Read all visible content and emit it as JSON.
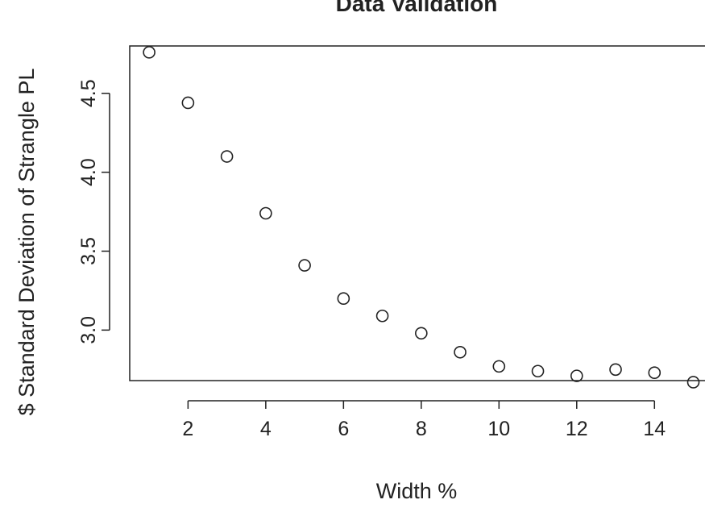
{
  "chart_data": {
    "type": "scatter",
    "title": "Data Validation",
    "xlabel": "Width %",
    "ylabel": "$ Standard Deviation of Strangle PL",
    "xlim": [
      0.5,
      15.3
    ],
    "ylim": [
      2.68,
      4.8
    ],
    "x_ticks": [
      2,
      4,
      6,
      8,
      10,
      12,
      14
    ],
    "y_ticks": [
      3.0,
      3.5,
      4.0,
      4.5
    ],
    "x_tick_labels": [
      "2",
      "4",
      "6",
      "8",
      "10",
      "12",
      "14"
    ],
    "y_tick_labels": [
      "3.0",
      "3.5",
      "4.0",
      "4.5"
    ],
    "grid": false,
    "marker": "open-circle",
    "x": [
      1,
      2,
      3,
      4,
      5,
      6,
      7,
      8,
      9,
      10,
      11,
      12,
      13,
      14,
      15
    ],
    "y": [
      4.76,
      4.44,
      4.1,
      3.74,
      3.41,
      3.2,
      3.09,
      2.98,
      2.86,
      2.77,
      2.74,
      2.71,
      2.75,
      2.73,
      2.67
    ]
  }
}
